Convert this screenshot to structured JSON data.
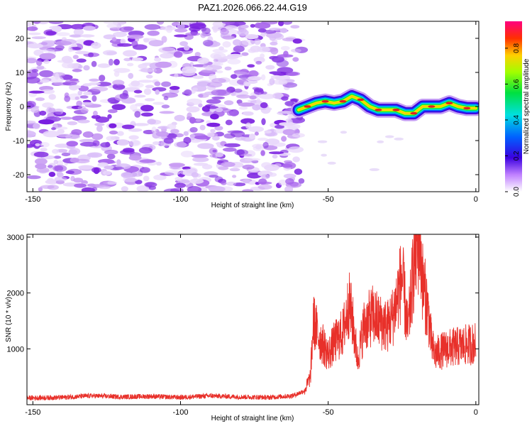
{
  "title": "PAZ1.2026.066.22.44.G19",
  "chart_data": [
    {
      "type": "heatmap",
      "xlabel": "Height of straight line (km)",
      "ylabel": "Frequency (Hz)",
      "xlim": [
        -152,
        1
      ],
      "ylim": [
        -25,
        25
      ],
      "xticks": [
        -150,
        -100,
        -50,
        0
      ],
      "yticks": [
        -20,
        -10,
        0,
        10,
        20
      ],
      "colorbar": {
        "label": "Normalized spectral amplitude",
        "range": [
          0.0,
          0.95
        ],
        "ticks": [
          0.0,
          0.2,
          0.4,
          0.6,
          0.8
        ]
      },
      "noise_region_x": [
        -152,
        -59
      ],
      "signal_ridge": {
        "x": [
          -60,
          -57,
          -54,
          -51,
          -48,
          -45,
          -42,
          -39,
          -36,
          -33,
          -30,
          -27,
          -24,
          -21,
          -18,
          -15,
          -12,
          -9,
          -6,
          -3,
          0
        ],
        "frequency": [
          -1,
          0,
          1,
          1.5,
          1,
          1.5,
          3,
          2,
          0,
          -1,
          -1,
          -1,
          -2,
          -2,
          0,
          0,
          0,
          1,
          0,
          -0.5,
          -0.5
        ]
      }
    },
    {
      "type": "line",
      "xlabel": "Height of straight line (km)",
      "ylabel": "SNR (10 * v/v)",
      "xlim": [
        -152,
        1
      ],
      "ylim": [
        0,
        3050
      ],
      "xticks": [
        -150,
        -100,
        -50,
        0
      ],
      "yticks": [
        1000,
        2000,
        3000
      ],
      "series": [
        {
          "name": "SNR",
          "color": "#e8302a",
          "x": [
            -152,
            -140,
            -130,
            -120,
            -110,
            -100,
            -90,
            -80,
            -70,
            -62,
            -58,
            -56,
            -55,
            -53,
            -50,
            -48,
            -45,
            -43,
            -42,
            -40,
            -38,
            -35,
            -33,
            -30,
            -28,
            -25,
            -23,
            -21,
            -20,
            -19,
            -18,
            -16,
            -15,
            -14,
            -10,
            -5,
            0
          ],
          "y": [
            120,
            130,
            160,
            140,
            150,
            130,
            160,
            140,
            130,
            160,
            250,
            500,
            1500,
            1200,
            900,
            1100,
            1300,
            1800,
            1600,
            800,
            1400,
            1600,
            1500,
            1400,
            1600,
            2300,
            1300,
            2500,
            2800,
            3000,
            2200,
            1600,
            1100,
            900,
            1000,
            1050,
            1100
          ]
        }
      ]
    }
  ],
  "colors": {
    "heat_purple": "#8e2de2",
    "ridge_red": "#e02020",
    "snr_line": "#e8302a"
  }
}
